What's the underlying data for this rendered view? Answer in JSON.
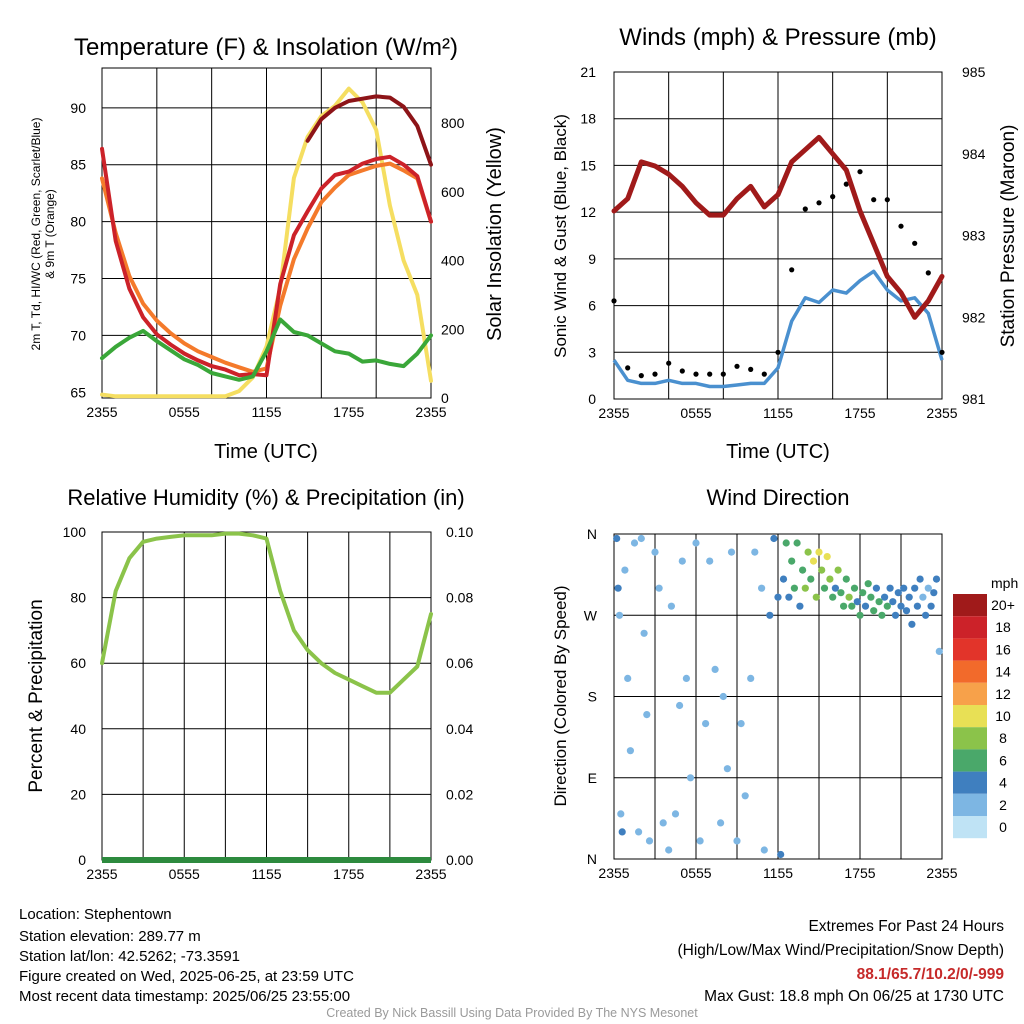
{
  "colors": {
    "temp": "#cc2229",
    "dewpoint": "#3aa739",
    "heat_index": "#8d1418",
    "temp9m": "#f47a2b",
    "insolation": "#f5de61",
    "wind": "#4a90cf",
    "gust": "#000000",
    "pressure": "#a01a1a",
    "rh": "#8bc34a",
    "precip": "#2d8a3e"
  },
  "panel1": {
    "title": "Temperature (F) & Insolation (W/m²)",
    "ylabel_left_line1": "2m T, Td, HI/WC (Red, Green, Scarlet/Blue)",
    "ylabel_left_line2": "& 9m T (Orange)",
    "ylabel_right": "Solar Insolation (Yellow)",
    "xlabel": "Time (UTC)"
  },
  "panel2": {
    "title": "Winds (mph) & Pressure (mb)",
    "ylabel_left": "Sonic Wind & Gust (Blue, Black)",
    "ylabel_right": "Station Pressure (Maroon)",
    "xlabel": "Time (UTC)"
  },
  "panel3": {
    "title": "Relative Humidity (%) & Precipitation (in)",
    "ylabel_left": "Percent & Precipitation"
  },
  "panel4": {
    "title": "Wind Direction",
    "ylabel_left": "Direction (Colored By Speed)",
    "legend_title": "mph",
    "legend_labels": [
      "20+",
      "18",
      "16",
      "14",
      "12",
      "10",
      "8",
      "6",
      "4",
      "2",
      "0"
    ],
    "legend_colors": [
      "#a01a1a",
      "#cc2229",
      "#e2342a",
      "#f26a2b",
      "#f7a14a",
      "#e8e055",
      "#8bc34a",
      "#4aa86a",
      "#3f7fbf",
      "#7db6e3",
      "#bfe3f5"
    ]
  },
  "chart_data": [
    {
      "type": "line",
      "title": "Temperature (F) & Insolation (W/m²)",
      "xlabel": "Time (UTC)",
      "ylabel": "2m T, Td, HI/WC (Red, Green, Scarlet/Blue) & 9m T (Orange)",
      "y2label": "Solar Insolation (Yellow)",
      "x_ticks": [
        "2355",
        "0555",
        "1155",
        "1755",
        "2355"
      ],
      "ylim": [
        64.5,
        93.5
      ],
      "y_ticks": [
        65,
        70,
        75,
        80,
        85,
        90
      ],
      "y2lim": [
        0,
        960
      ],
      "y2_ticks": [
        0,
        200,
        400,
        600,
        800
      ],
      "x": [
        0,
        1,
        2,
        3,
        4,
        5,
        6,
        7,
        8,
        9,
        10,
        11,
        12,
        13,
        14,
        15,
        16,
        17,
        18,
        19,
        20,
        21,
        22,
        23,
        24
      ],
      "series": [
        {
          "name": "2m T",
          "axis": "left",
          "values": [
            86.4,
            78.3,
            74.1,
            71.6,
            70.1,
            69.2,
            68.4,
            67.8,
            67.3,
            67.0,
            66.5,
            66.6,
            66.5,
            74.5,
            78.8,
            80.9,
            82.9,
            84.1,
            84.4,
            85.1,
            85.5,
            85.7,
            85.0,
            84.0,
            80.0
          ]
        },
        {
          "name": "2m Td",
          "axis": "left",
          "values": [
            68.0,
            69.0,
            69.8,
            70.4,
            69.5,
            68.7,
            67.9,
            67.4,
            66.7,
            66.4,
            66.1,
            66.4,
            68.6,
            71.4,
            70.3,
            70.0,
            69.3,
            68.6,
            68.4,
            67.7,
            67.8,
            67.5,
            67.3,
            68.4,
            70.0
          ]
        },
        {
          "name": "HI/WC",
          "axis": "left",
          "values": [
            null,
            null,
            null,
            null,
            null,
            null,
            null,
            null,
            null,
            null,
            null,
            null,
            null,
            null,
            null,
            87.1,
            89.0,
            90.0,
            90.6,
            90.8,
            91.0,
            90.9,
            90.1,
            88.4,
            85.0
          ]
        },
        {
          "name": "9m T",
          "axis": "left",
          "values": [
            83.8,
            79.0,
            75.2,
            72.8,
            71.3,
            70.2,
            69.3,
            68.6,
            68.1,
            67.6,
            67.2,
            66.8,
            67.1,
            72.6,
            76.7,
            79.4,
            81.7,
            83.0,
            84.1,
            84.5,
            84.9,
            85.1,
            84.5,
            83.8,
            80.0
          ]
        },
        {
          "name": "Solar Insolation",
          "axis": "right",
          "values": [
            10,
            5,
            5,
            5,
            5,
            5,
            5,
            5,
            5,
            5,
            20,
            60,
            150,
            320,
            640,
            760,
            820,
            850,
            900,
            860,
            780,
            560,
            400,
            300,
            50
          ]
        }
      ]
    },
    {
      "type": "line",
      "title": "Winds (mph) & Pressure (mb)",
      "xlabel": "Time (UTC)",
      "ylabel": "Sonic Wind & Gust (Blue, Black)",
      "y2label": "Station Pressure (Maroon)",
      "x_ticks": [
        "2355",
        "0555",
        "1155",
        "1755",
        "2355"
      ],
      "ylim": [
        0,
        21
      ],
      "y_ticks": [
        0,
        3,
        6,
        9,
        12,
        15,
        18,
        21
      ],
      "y2lim": [
        981,
        985
      ],
      "y2_ticks": [
        981,
        982,
        983,
        984,
        985
      ],
      "x": [
        0,
        1,
        2,
        3,
        4,
        5,
        6,
        7,
        8,
        9,
        10,
        11,
        12,
        13,
        14,
        15,
        16,
        17,
        18,
        19,
        20,
        21,
        22,
        23,
        24
      ],
      "series": [
        {
          "name": "Sonic Wind",
          "axis": "left",
          "values": [
            2.5,
            1.2,
            1.0,
            1.0,
            1.2,
            1.0,
            1.0,
            0.8,
            0.8,
            0.9,
            1.0,
            1.0,
            2.0,
            5.0,
            6.5,
            6.2,
            7.0,
            6.8,
            7.6,
            8.2,
            7.0,
            6.3,
            6.5,
            5.5,
            2.5
          ]
        },
        {
          "name": "Gust",
          "axis": "left",
          "values": [
            6.3,
            2.0,
            1.5,
            1.6,
            2.3,
            1.8,
            1.6,
            1.6,
            1.6,
            2.1,
            1.9,
            1.6,
            3.0,
            8.3,
            12.2,
            12.6,
            13.0,
            13.8,
            14.6,
            12.8,
            12.8,
            11.1,
            10.0,
            8.1,
            3.0
          ]
        },
        {
          "name": "Station Pressure",
          "axis": "right",
          "values": [
            983.3,
            983.45,
            983.9,
            983.85,
            983.75,
            983.6,
            983.4,
            983.25,
            983.25,
            983.45,
            983.6,
            983.35,
            983.5,
            983.9,
            984.05,
            984.2,
            984.0,
            983.8,
            983.3,
            982.9,
            982.5,
            982.3,
            982.0,
            982.2,
            982.5
          ]
        }
      ]
    },
    {
      "type": "line",
      "title": "Relative Humidity (%) & Precipitation (in)",
      "xlabel": "",
      "ylabel": "Percent & Precipitation",
      "x_ticks": [
        "2355",
        "0555",
        "1155",
        "1755",
        "2355"
      ],
      "ylim": [
        0,
        100
      ],
      "y_ticks": [
        0,
        20,
        40,
        60,
        80,
        100
      ],
      "y2lim": [
        0,
        0.1
      ],
      "y2_ticks": [
        "0.00",
        "0.02",
        "0.04",
        "0.06",
        "0.08",
        "0.10"
      ],
      "x": [
        0,
        1,
        2,
        3,
        4,
        5,
        6,
        7,
        8,
        9,
        10,
        11,
        12,
        13,
        14,
        15,
        16,
        17,
        18,
        19,
        20,
        21,
        22,
        23,
        24
      ],
      "series": [
        {
          "name": "Relative Humidity",
          "axis": "left",
          "values": [
            60,
            82,
            92,
            97,
            98,
            98.5,
            99,
            99,
            99,
            99.5,
            99.5,
            99,
            98,
            82,
            70,
            64,
            60,
            57,
            55,
            53,
            51,
            51,
            55,
            59,
            75
          ]
        },
        {
          "name": "Precipitation",
          "axis": "right",
          "values": [
            0,
            0,
            0,
            0,
            0,
            0,
            0,
            0,
            0,
            0,
            0,
            0,
            0,
            0,
            0,
            0,
            0,
            0,
            0,
            0,
            0,
            0,
            0,
            0,
            0
          ]
        }
      ]
    },
    {
      "type": "scatter",
      "title": "Wind Direction",
      "ylabel": "Direction (Colored By Speed)",
      "x_ticks": [
        "2355",
        "0555",
        "1155",
        "1755",
        "2355"
      ],
      "y_ticks": [
        "N",
        "E",
        "S",
        "W",
        "N"
      ],
      "ylim": [
        0,
        360
      ],
      "color_scale": "mph",
      "points": [
        [
          0.2,
          355,
          3
        ],
        [
          0.3,
          300,
          3
        ],
        [
          0.4,
          270,
          2
        ],
        [
          0.5,
          50,
          2
        ],
        [
          0.6,
          30,
          3
        ],
        [
          0.8,
          320,
          2
        ],
        [
          1.0,
          200,
          1
        ],
        [
          1.2,
          120,
          1
        ],
        [
          1.5,
          350,
          1
        ],
        [
          1.8,
          30,
          1
        ],
        [
          2.0,
          355,
          1
        ],
        [
          2.2,
          250,
          1
        ],
        [
          2.4,
          160,
          1
        ],
        [
          2.6,
          20,
          1
        ],
        [
          3.0,
          340,
          1
        ],
        [
          3.3,
          300,
          1
        ],
        [
          3.6,
          40,
          1
        ],
        [
          4.0,
          10,
          1
        ],
        [
          4.2,
          280,
          2
        ],
        [
          4.5,
          50,
          1
        ],
        [
          4.8,
          170,
          1
        ],
        [
          5.0,
          330,
          1
        ],
        [
          5.3,
          200,
          1
        ],
        [
          5.6,
          90,
          1
        ],
        [
          6.0,
          350,
          1
        ],
        [
          6.3,
          20,
          1
        ],
        [
          6.7,
          150,
          1
        ],
        [
          7.0,
          330,
          1
        ],
        [
          7.4,
          210,
          1
        ],
        [
          7.8,
          40,
          1
        ],
        [
          8.0,
          180,
          1
        ],
        [
          8.3,
          100,
          1
        ],
        [
          8.6,
          340,
          1
        ],
        [
          9.0,
          20,
          1
        ],
        [
          9.3,
          150,
          1
        ],
        [
          9.6,
          70,
          1
        ],
        [
          10.0,
          200,
          1
        ],
        [
          10.3,
          340,
          1
        ],
        [
          10.8,
          300,
          2
        ],
        [
          11.0,
          10,
          1
        ],
        [
          11.4,
          270,
          3
        ],
        [
          11.7,
          355,
          3
        ],
        [
          12.0,
          290,
          4
        ],
        [
          12.2,
          5,
          4
        ],
        [
          12.4,
          310,
          3
        ],
        [
          12.6,
          350,
          5
        ],
        [
          12.8,
          290,
          4
        ],
        [
          13.0,
          330,
          6
        ],
        [
          13.2,
          300,
          5
        ],
        [
          13.4,
          350,
          6
        ],
        [
          13.6,
          280,
          4
        ],
        [
          13.8,
          320,
          6
        ],
        [
          14.0,
          300,
          7
        ],
        [
          14.2,
          340,
          8
        ],
        [
          14.4,
          310,
          6
        ],
        [
          14.6,
          330,
          9
        ],
        [
          14.8,
          290,
          7
        ],
        [
          15.0,
          340,
          10
        ],
        [
          15.2,
          320,
          8
        ],
        [
          15.4,
          300,
          6
        ],
        [
          15.6,
          335,
          9
        ],
        [
          15.8,
          310,
          7
        ],
        [
          16.0,
          290,
          6
        ],
        [
          16.2,
          300,
          4
        ],
        [
          16.4,
          320,
          7
        ],
        [
          16.6,
          295,
          6
        ],
        [
          16.8,
          280,
          5
        ],
        [
          17.0,
          310,
          6
        ],
        [
          17.2,
          290,
          7
        ],
        [
          17.4,
          280,
          5
        ],
        [
          17.6,
          300,
          6
        ],
        [
          17.8,
          285,
          4
        ],
        [
          18.0,
          270,
          5
        ],
        [
          18.2,
          295,
          6
        ],
        [
          18.4,
          280,
          4
        ],
        [
          18.6,
          305,
          5
        ],
        [
          18.8,
          290,
          6
        ],
        [
          19.0,
          275,
          5
        ],
        [
          19.2,
          300,
          4
        ],
        [
          19.4,
          285,
          5
        ],
        [
          19.6,
          270,
          6
        ],
        [
          19.8,
          290,
          4
        ],
        [
          20.0,
          280,
          5
        ],
        [
          20.2,
          300,
          4
        ],
        [
          20.4,
          285,
          3
        ],
        [
          20.6,
          270,
          4
        ],
        [
          20.8,
          295,
          3
        ],
        [
          21.0,
          280,
          4
        ],
        [
          21.2,
          300,
          3
        ],
        [
          21.4,
          275,
          4
        ],
        [
          21.6,
          290,
          3
        ],
        [
          21.8,
          260,
          4
        ],
        [
          22.0,
          300,
          3
        ],
        [
          22.2,
          280,
          4
        ],
        [
          22.4,
          310,
          3
        ],
        [
          22.6,
          290,
          2
        ],
        [
          22.8,
          270,
          3
        ],
        [
          23.0,
          300,
          2
        ],
        [
          23.2,
          280,
          3
        ],
        [
          23.4,
          295,
          4
        ],
        [
          23.6,
          310,
          3
        ],
        [
          23.8,
          230,
          2
        ]
      ]
    }
  ],
  "footer": {
    "location": "Location: Stephentown",
    "elevation": "Station elevation: 289.77 m",
    "latlon": "Station lat/lon: 42.5262; -73.3591",
    "created": "Figure created on Wed, 2025-06-25, at 23:59 UTC",
    "recent": "Most recent data timestamp: 2025/06/25 23:55:00",
    "extremes_title": "Extremes For Past 24 Hours",
    "extremes_sub": "(High/Low/Max Wind/Precipitation/Snow Depth)",
    "extremes_values": "88.1/65.7/10.2/0/-999",
    "max_gust": "Max Gust: 18.8 mph On 06/25 at 1730 UTC",
    "credit": "Created By Nick Bassill Using Data Provided By The NYS Mesonet"
  }
}
